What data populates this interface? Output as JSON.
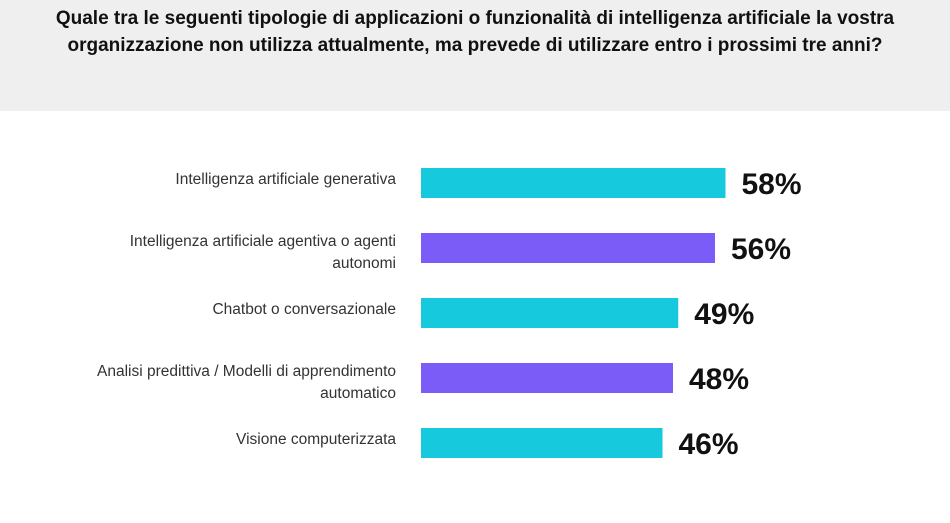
{
  "header": {
    "title": "Quale tra le seguenti tipologie di applicazioni o funzionalità di intelligenza artificiale la vostra organizzazione non utilizza attualmente, ma prevede di utilizzare entro i prossimi tre anni?"
  },
  "colors": {
    "header_background": "#efefef",
    "bar_teal": "#17c9dc",
    "bar_purple": "#7b5cf6"
  },
  "chart_data": {
    "type": "bar",
    "orientation": "horizontal",
    "title": "Quale tra le seguenti tipologie di applicazioni o funzionalità di intelligenza artificiale la vostra organizzazione non utilizza attualmente, ma prevede di utilizzare entro i prossimi tre anni?",
    "categories": [
      [
        "Intelligenza artificiale generativa"
      ],
      [
        "Intelligenza artificiale agentiva o agenti",
        "autonomi"
      ],
      [
        "Chatbot o conversazionale"
      ],
      [
        "Analisi predittiva / Modelli di apprendimento",
        "automatico"
      ],
      [
        "Visione computerizzata"
      ]
    ],
    "values": [
      58,
      56,
      49,
      48,
      46
    ],
    "value_labels": [
      "58%",
      "56%",
      "49%",
      "48%",
      "46%"
    ],
    "bar_colors": [
      "#17c9dc",
      "#7b5cf6",
      "#17c9dc",
      "#7b5cf6",
      "#17c9dc"
    ],
    "unit": "%",
    "grid": false,
    "legend": "none"
  }
}
